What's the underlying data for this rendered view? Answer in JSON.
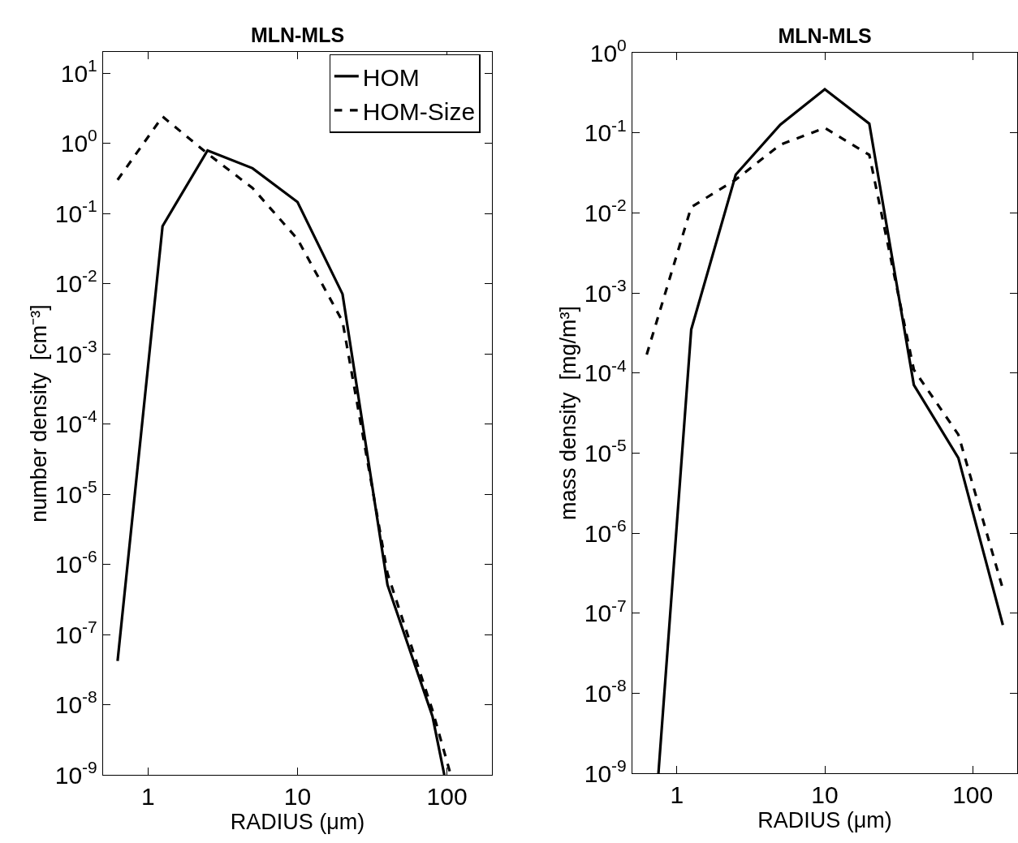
{
  "chart_data": [
    {
      "type": "line",
      "title": "MLN-MLS",
      "xlabel": "RADIUS (μm)",
      "ylabel": "number density  [cm⁻³]",
      "log": "xy",
      "xlim": [
        0.5,
        200
      ],
      "ylim": [
        1e-09,
        20
      ],
      "xticks": [
        1,
        10,
        100
      ],
      "yticks": [
        {
          "value": 1e-09,
          "label": "10$^{-9}$"
        },
        {
          "value": 1e-08,
          "label": "10$^{-8}$"
        },
        {
          "value": 1e-07,
          "label": "10$^{-7}$"
        },
        {
          "value": 1e-06,
          "label": "10$^{-6}$"
        },
        {
          "value": 1e-05,
          "label": "10$^{-5}$"
        },
        {
          "value": 0.0001,
          "label": "10$^{-4}$"
        },
        {
          "value": 0.001,
          "label": "10$^{-3}$"
        },
        {
          "value": 0.01,
          "label": "10$^{-2}$"
        },
        {
          "value": 0.1,
          "label": "10$^{-1}$"
        },
        {
          "value": 1,
          "label": "10$^{0}$"
        },
        {
          "value": 10,
          "label": "10$^{1}$"
        }
      ],
      "legend": "top right",
      "series": [
        {
          "name": "HOM",
          "color": "#000000",
          "line_style": "solid",
          "x": [
            0.625,
            1.25,
            2.5,
            5,
            10,
            20,
            40,
            80,
            96
          ],
          "values": [
            4.2e-08,
            0.066,
            0.79,
            0.44,
            0.145,
            0.0071,
            5.1e-07,
            6.8e-09,
            1e-09
          ]
        },
        {
          "name": "HOM-Size",
          "color": "#000000",
          "line_style": "dashed",
          "x": [
            0.625,
            1.25,
            2.5,
            5,
            10,
            20,
            40,
            80,
            106
          ],
          "values": [
            0.3,
            2.4,
            0.71,
            0.23,
            0.043,
            0.0029,
            7.4e-07,
            8.3e-09,
            1e-09
          ]
        }
      ]
    },
    {
      "type": "line",
      "title": "MLN-MLS",
      "xlabel": "RADIUS (μm)",
      "ylabel": "mass density  [mg/m³]",
      "log": "xy",
      "xlim": [
        0.5,
        200
      ],
      "ylim": [
        1e-09,
        1
      ],
      "xticks": [
        1,
        10,
        100
      ],
      "yticks": [
        {
          "value": 1e-09,
          "label": "10$^{-9}$"
        },
        {
          "value": 1e-08,
          "label": "10$^{-8}$"
        },
        {
          "value": 1e-07,
          "label": "10$^{-7}$"
        },
        {
          "value": 1e-06,
          "label": "10$^{-6}$"
        },
        {
          "value": 1e-05,
          "label": "10$^{-5}$"
        },
        {
          "value": 0.0001,
          "label": "10$^{-4}$"
        },
        {
          "value": 0.001,
          "label": "10$^{-3}$"
        },
        {
          "value": 0.01,
          "label": "10$^{-2}$"
        },
        {
          "value": 0.1,
          "label": "10$^{-1}$"
        },
        {
          "value": 1,
          "label": "10$^{0}$"
        }
      ],
      "series": [
        {
          "color": "#000000",
          "line_style": "solid",
          "x": [
            0.75,
            1.25,
            2.5,
            5,
            10,
            20,
            40,
            80,
            160
          ],
          "values": [
            1e-09,
            0.00035,
            0.03,
            0.126,
            0.35,
            0.13,
            7.1e-05,
            8.7e-06,
            7.1e-08
          ]
        },
        {
          "color": "#000000",
          "line_style": "dashed",
          "x": [
            0.625,
            1.25,
            2.5,
            5,
            10,
            20,
            40,
            80,
            160
          ],
          "values": [
            0.00017,
            0.0118,
            0.026,
            0.071,
            0.115,
            0.053,
            0.00011,
            1.7e-05,
            2e-07
          ]
        }
      ]
    }
  ]
}
